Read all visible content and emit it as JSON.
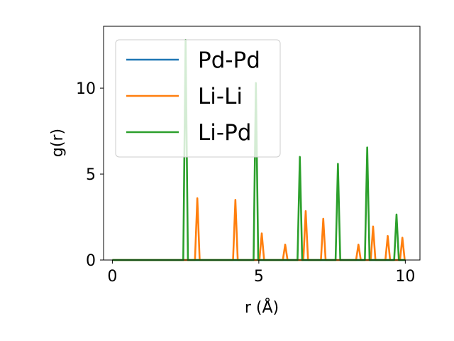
{
  "chart_data": {
    "type": "line",
    "title": "",
    "xlabel": "r (Å)",
    "ylabel": "g(r)",
    "xlim": [
      -0.3,
      10.5
    ],
    "ylim": [
      0,
      13.6
    ],
    "xticks": [
      0,
      5,
      10
    ],
    "yticks": [
      0,
      5,
      10
    ],
    "grid": false,
    "legend_position": "upper-left",
    "series": [
      {
        "name": "Pd-Pd",
        "color": "#1f77b4",
        "points": [
          [
            0,
            0
          ],
          [
            10,
            0
          ]
        ]
      },
      {
        "name": "Li-Li",
        "color": "#ff7f0e",
        "points": [
          [
            0,
            0
          ],
          [
            2.82,
            0
          ],
          [
            2.9,
            3.6
          ],
          [
            2.98,
            0
          ],
          [
            4.12,
            0
          ],
          [
            4.2,
            3.5
          ],
          [
            4.28,
            0
          ],
          [
            5.02,
            0
          ],
          [
            5.1,
            1.55
          ],
          [
            5.18,
            0
          ],
          [
            5.82,
            0
          ],
          [
            5.9,
            0.9
          ],
          [
            5.98,
            0
          ],
          [
            6.52,
            0
          ],
          [
            6.6,
            2.85
          ],
          [
            6.68,
            0
          ],
          [
            7.12,
            0
          ],
          [
            7.2,
            2.4
          ],
          [
            7.28,
            0
          ],
          [
            8.32,
            0
          ],
          [
            8.4,
            0.9
          ],
          [
            8.48,
            0
          ],
          [
            8.82,
            0
          ],
          [
            8.9,
            1.95
          ],
          [
            8.98,
            0
          ],
          [
            9.32,
            0
          ],
          [
            9.4,
            1.4
          ],
          [
            9.48,
            0
          ],
          [
            9.82,
            0
          ],
          [
            9.9,
            1.3
          ],
          [
            9.98,
            0
          ],
          [
            10,
            0
          ]
        ]
      },
      {
        "name": "Li-Pd",
        "color": "#2ca02c",
        "points": [
          [
            0,
            0
          ],
          [
            2.42,
            0
          ],
          [
            2.5,
            12.8
          ],
          [
            2.58,
            0
          ],
          [
            4.82,
            0
          ],
          [
            4.9,
            10.3
          ],
          [
            4.98,
            0
          ],
          [
            6.32,
            0
          ],
          [
            6.4,
            6.0
          ],
          [
            6.48,
            0
          ],
          [
            7.62,
            0
          ],
          [
            7.7,
            5.6
          ],
          [
            7.78,
            0
          ],
          [
            8.62,
            0
          ],
          [
            8.7,
            6.55
          ],
          [
            8.78,
            0
          ],
          [
            9.62,
            0
          ],
          [
            9.7,
            2.65
          ],
          [
            9.78,
            0
          ],
          [
            10,
            0
          ]
        ]
      }
    ]
  }
}
